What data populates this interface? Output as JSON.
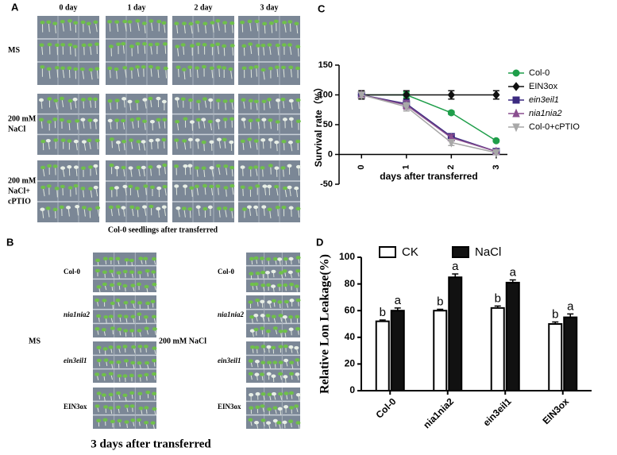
{
  "figure": {
    "panel_a": {
      "label": "A",
      "columns": [
        "0 day",
        "1 day",
        "2 day",
        "3 day"
      ],
      "rows": [
        [
          "MS"
        ],
        [
          "200 mM",
          "NaCl"
        ],
        [
          "200 mM",
          "NaCl+",
          "cPTIO"
        ]
      ],
      "caption": "Col-0 seedlings after transferred"
    },
    "panel_b": {
      "label": "B",
      "conditions": [
        "MS",
        "200 mM NaCl"
      ],
      "genotypes": [
        "Col-0",
        "nia1nia2",
        "ein3eil1",
        "EIN3ox"
      ],
      "caption": "3 days after  transferred"
    }
  },
  "chart_data": [
    {
      "type": "line",
      "label": "C",
      "y_label": "Survival rate（%）",
      "x_label": "days after transferred",
      "x": [
        0,
        1,
        2,
        3
      ],
      "xlim": [
        -0.5,
        3.25
      ],
      "xticks": [
        0,
        1,
        2,
        3
      ],
      "ylim": [
        -50,
        150
      ],
      "yticks": [
        -50,
        0,
        50,
        100,
        150
      ],
      "series": [
        {
          "name": "Col-0",
          "color": "#1f9e4a",
          "marker": "circle",
          "values": [
            100,
            100,
            70,
            23
          ],
          "errors": [
            5,
            5,
            3,
            2
          ]
        },
        {
          "name": "EIN3ox",
          "color": "#111111",
          "marker": "diamond",
          "values": [
            100,
            100,
            100,
            100
          ],
          "errors": [
            7,
            7,
            7,
            7
          ]
        },
        {
          "name": "ein3eil1",
          "color": "#3b2a80",
          "marker": "square",
          "values": [
            100,
            85,
            30,
            5
          ],
          "errors": [
            5,
            7,
            5,
            3
          ]
        },
        {
          "name": "nia1nia2",
          "color": "#8a4f8f",
          "marker": "triangle",
          "values": [
            100,
            83,
            28,
            5
          ],
          "errors": [
            5,
            7,
            5,
            3
          ]
        },
        {
          "name": "Col-0+cPTIO",
          "color": "#a8a8a8",
          "marker": "triangle-down",
          "values": [
            100,
            80,
            20,
            3
          ],
          "errors": [
            5,
            7,
            5,
            3
          ]
        }
      ]
    },
    {
      "type": "bar",
      "label": "D",
      "y_label": "Relative Lon Leakage(%)",
      "categories": [
        "Col-0",
        "nia1nia2",
        "ein3eil1",
        "EIN3ox"
      ],
      "ylim": [
        0,
        100
      ],
      "yticks": [
        0,
        20,
        40,
        60,
        80,
        100
      ],
      "series": [
        {
          "name": "CK",
          "color": "#ffffff",
          "values": [
            52,
            60,
            62,
            50
          ],
          "errors": [
            1,
            1,
            1.5,
            1.5
          ],
          "letters": [
            "b",
            "b",
            "b",
            "b"
          ]
        },
        {
          "name": "NaCl",
          "color": "#111111",
          "values": [
            60,
            85,
            81,
            55
          ],
          "errors": [
            2,
            2.5,
            2,
            2.5
          ],
          "letters": [
            "a",
            "a",
            "a",
            "a"
          ]
        }
      ]
    }
  ]
}
